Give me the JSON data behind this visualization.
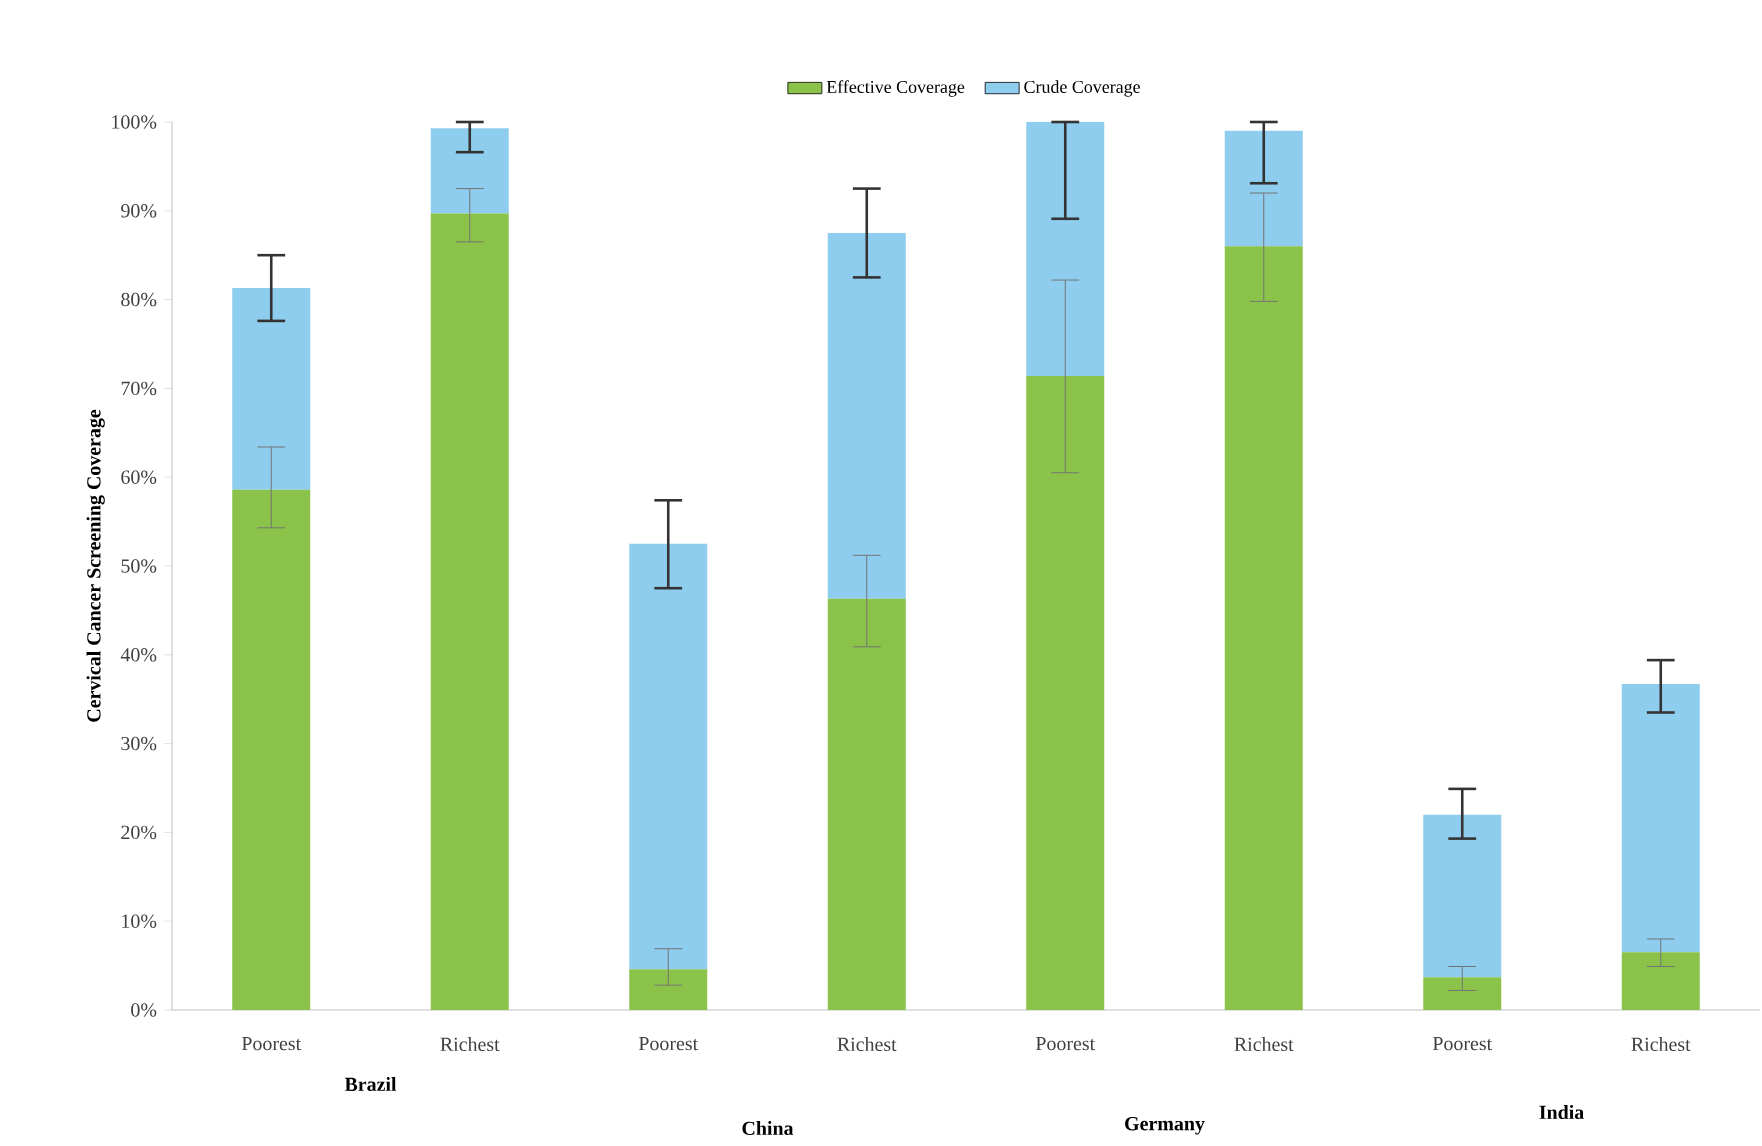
{
  "chart_data": {
    "type": "bar",
    "stacked": true,
    "ylabel": "Cervical Cancer Screening Coverage",
    "categories": [
      "Poorest",
      "Richest",
      "Poorest",
      "Richest",
      "Poorest",
      "Richest",
      "Poorest",
      "Richest"
    ],
    "series": [
      {
        "name": "Effective Coverage",
        "color": "#8bc34a",
        "values": [
          58.6,
          89.7,
          4.6,
          46.3,
          71.4,
          86.0,
          3.7,
          6.5
        ],
        "errors": [
          [
            54.3,
            63.4
          ],
          [
            86.5,
            92.5
          ],
          [
            2.8,
            6.9
          ],
          [
            40.9,
            51.2
          ],
          [
            60.5,
            82.2
          ],
          [
            79.8,
            92.0
          ],
          [
            2.2,
            4.9
          ],
          [
            4.9,
            8.0
          ]
        ]
      },
      {
        "name": "Crude Coverage",
        "color": "#8ecdee",
        "values": [
          22.7,
          9.6,
          47.9,
          41.2,
          28.6,
          13.0,
          18.3,
          30.2
        ],
        "errors": [
          [
            77.6,
            85.0
          ],
          [
            96.6,
            100
          ],
          [
            47.5,
            57.4
          ],
          [
            82.5,
            92.5
          ],
          [
            89.1,
            100
          ],
          [
            93.1,
            100
          ],
          [
            19.3,
            24.9
          ],
          [
            33.5,
            39.4
          ]
        ]
      }
    ],
    "ylim": [
      0,
      100
    ],
    "yticks": [
      {
        "value": 0,
        "label": "0%"
      },
      {
        "value": 10,
        "label": "10%"
      },
      {
        "value": 20,
        "label": "20%"
      },
      {
        "value": 30,
        "label": "30%"
      },
      {
        "value": 40,
        "label": "40%"
      },
      {
        "value": 50,
        "label": "50%"
      },
      {
        "value": 60,
        "label": "60%"
      },
      {
        "value": 70,
        "label": "70%"
      },
      {
        "value": 80,
        "label": "80%"
      },
      {
        "value": 90,
        "label": "90%"
      },
      {
        "value": 100,
        "label": "100%"
      }
    ],
    "legend": "top",
    "grid": false,
    "annotations": [
      "Brazil",
      "China",
      "Germany",
      "India"
    ]
  }
}
